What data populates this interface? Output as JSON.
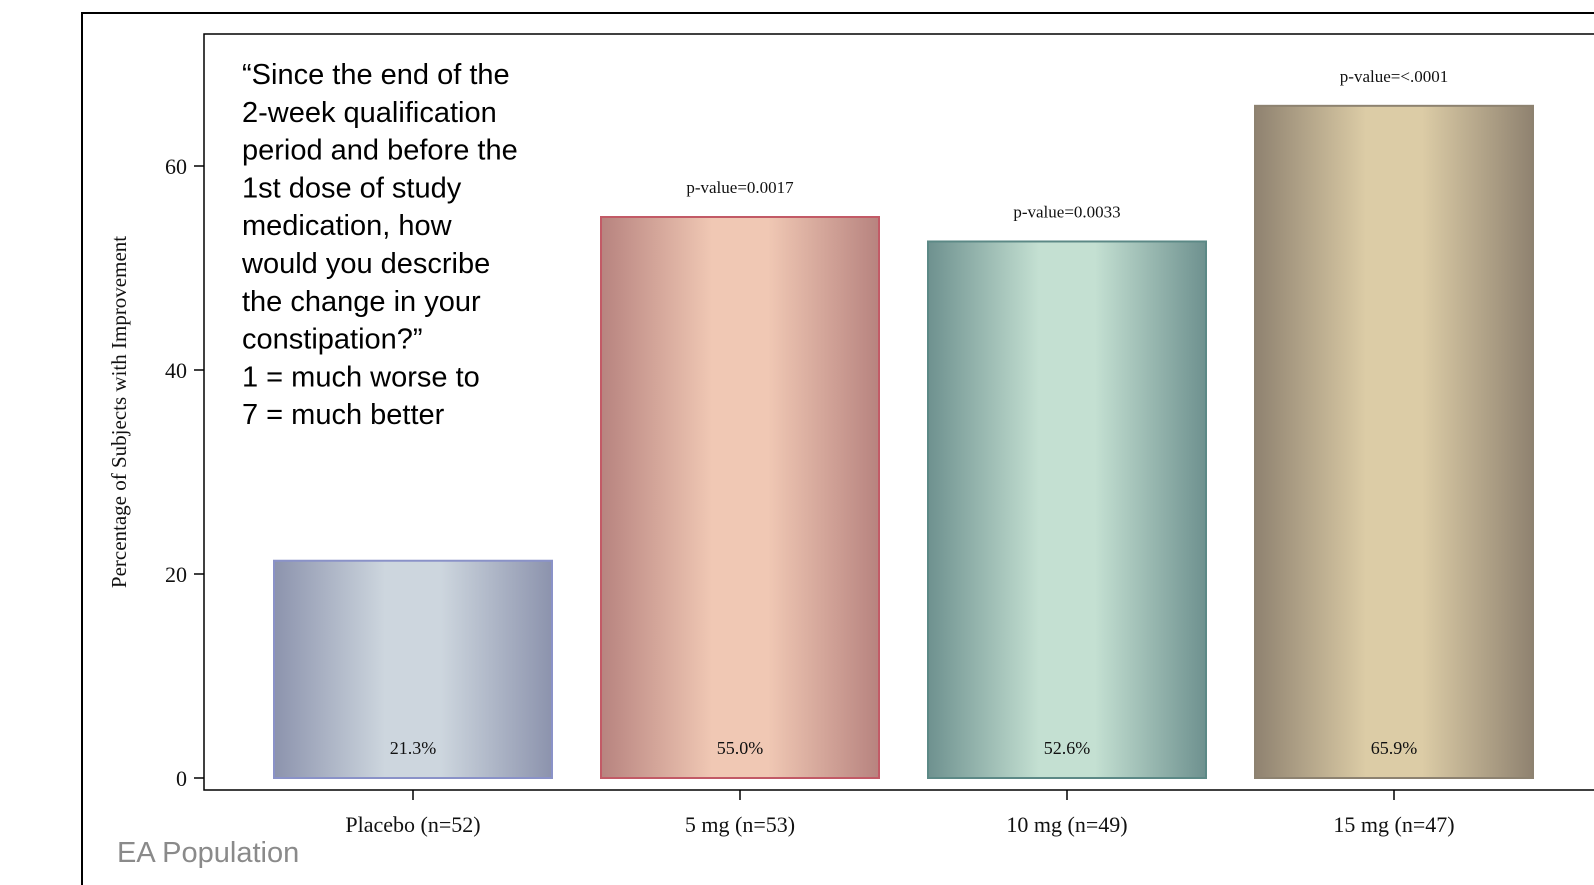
{
  "chart_data": {
    "type": "bar",
    "ylabel": "Percentage of Subjects with Improvement",
    "ylim": [
      0,
      70
    ],
    "yticks": [
      0,
      20,
      40,
      60
    ],
    "categories": [
      "Placebo (n=52)",
      "5 mg (n=53)",
      "10 mg (n=49)",
      "15 mg (n=47)"
    ],
    "values": [
      21.3,
      55.0,
      52.6,
      65.9
    ],
    "data_labels": [
      "21.3%",
      "55.0%",
      "52.6%",
      "65.9%"
    ],
    "p_values": [
      "",
      "p-value=0.0017",
      "p-value=0.0033",
      "p-value=<.0001"
    ],
    "bar_colors": [
      {
        "edge": "#8a92c8",
        "dark": "#8c93ad",
        "light": "#cdd6de"
      },
      {
        "edge": "#c25a66",
        "dark": "#b7837f",
        "light": "#f0c8b4"
      },
      {
        "edge": "#5c8986",
        "dark": "#6e918f",
        "light": "#c4e0d2"
      },
      {
        "edge": "#8d8270",
        "dark": "#8f8270",
        "light": "#dccca6"
      }
    ],
    "grid": false,
    "legend": "none"
  },
  "callout": {
    "lines": [
      "“Since the end of the",
      "2-week qualification",
      "period and before the",
      "1st dose of study",
      "medication, how",
      "would you describe",
      "the change in your",
      "constipation?”",
      "1 = much worse to",
      "7 = much better"
    ]
  },
  "footnote": "EA Population"
}
